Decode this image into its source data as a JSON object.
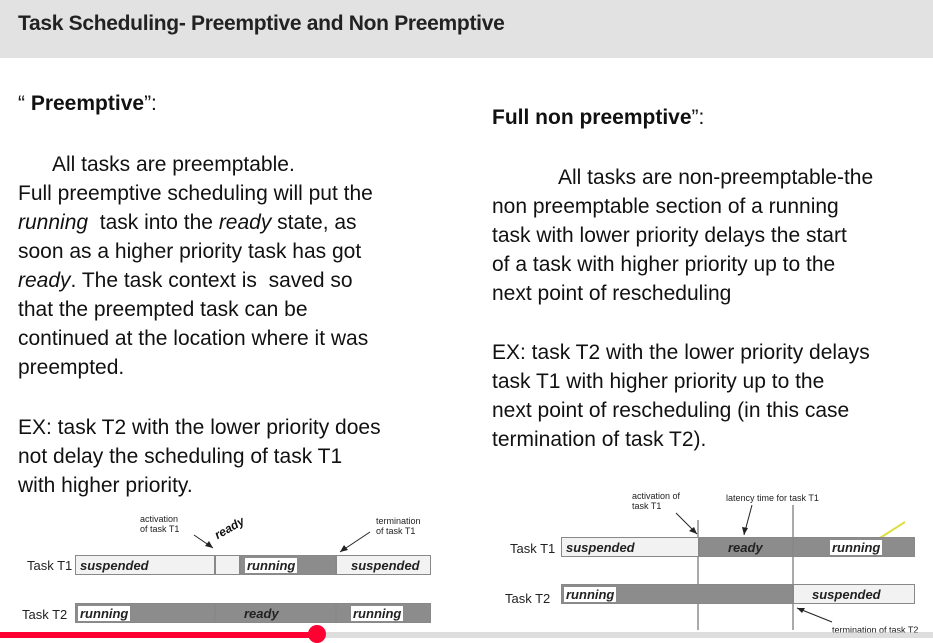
{
  "title": "Task Scheduling- Preemptive and Non Preemptive",
  "left": {
    "heading_open": "“ ",
    "heading_bold": "Preemptive",
    "heading_close": "”:",
    "l1": "All tasks are preemptable.",
    "l2": "Full preemptive scheduling will put the",
    "l3_i1": "running",
    "l3_t": "  task into the ",
    "l3_i2": "ready",
    "l3_t2": " state, as",
    "l4": "soon as a higher priority task has got",
    "l5_i": "ready",
    "l5_t": ". The task context is  saved so",
    "l6": "that the preempted task can be",
    "l7": "continued  at the location where it was",
    "l8": "preempted.",
    "ex1": "EX: task T2 with the lower priority does",
    "ex2": "not delay  the scheduling of task T1",
    "ex3": "with higher priority."
  },
  "right": {
    "heading_bold": "Full non preemptive",
    "heading_close": "”:",
    "l1": "All tasks are non-preemptable-the",
    "l2": "non preemptable section of a  running",
    "l3": "task with lower priority delays  the start",
    "l4": "of a task with higher priority up  to the",
    "l5": "next point of rescheduling",
    "ex1": "EX: task T2 with the lower priority delays",
    "ex2": "task T1 with higher priority up to the",
    "ex3": "next point of rescheduling (in this case",
    "ex4": "termination of task T2)."
  },
  "diagram_left": {
    "activation_1": "activation",
    "activation_2": "of task T1",
    "termination_1": "termination",
    "termination_2": "of task T1",
    "ready_label": "ready",
    "task_t1": "Task T1",
    "task_t2": "Task T2",
    "t1_suspended": "suspended",
    "t1_running": "running",
    "t1_suspended2": "suspended",
    "t2_running": "running",
    "t2_ready": "ready",
    "t2_running2": "running"
  },
  "diagram_right": {
    "activation_1": "activation of",
    "activation_2": "task T1",
    "latency": "latency time for task T1",
    "task_t1": "Task T1",
    "task_t2": "Task T2",
    "t1_suspended": "suspended",
    "t1_ready": "ready",
    "t1_running": "running",
    "t2_running": "running",
    "t2_suspended": "suspended",
    "termination": "termination of task T2"
  },
  "video_progress": 0.34
}
